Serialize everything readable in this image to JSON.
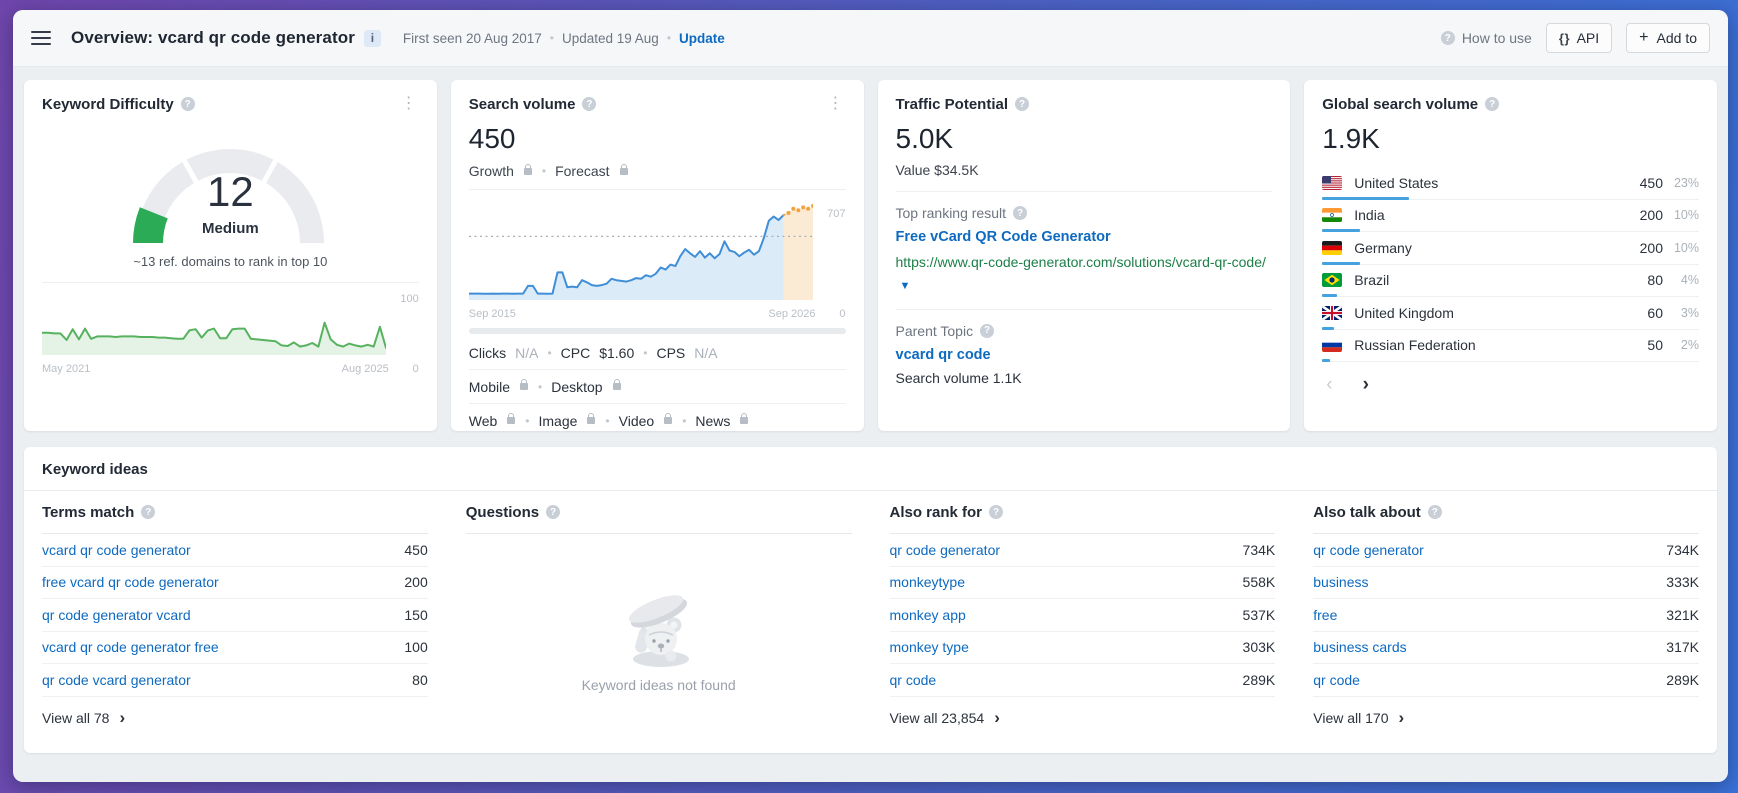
{
  "header": {
    "title": "Overview: vcard qr code generator",
    "info_badge": "i",
    "first_seen": "First seen 20 Aug 2017",
    "updated": "Updated 19 Aug",
    "update_link": "Update",
    "how_to_use": "How to use",
    "api_button": "API",
    "add_to_button": "Add to"
  },
  "keyword_difficulty": {
    "title": "Keyword Difficulty",
    "value": "12",
    "level": "Medium",
    "subtitle": "~13 ref. domains to rank in top 10",
    "history_y_max": "100",
    "history_y_min": "0",
    "history_x_start": "May 2021",
    "history_x_end": "Aug 2025"
  },
  "search_volume": {
    "title": "Search volume",
    "value": "450",
    "growth_label": "Growth",
    "forecast_label": "Forecast",
    "chart_y_max": "707",
    "chart_y_min": "0",
    "chart_x_start": "Sep 2015",
    "chart_x_end": "Sep 2026",
    "metrics_row1": [
      {
        "label": "Clicks",
        "value": "N/A",
        "muted": true
      },
      {
        "label": "CPC",
        "value": "$1.60",
        "muted": false
      },
      {
        "label": "CPS",
        "value": "N/A",
        "muted": true
      }
    ],
    "metrics_row2": [
      {
        "label": "Mobile",
        "locked": true
      },
      {
        "label": "Desktop",
        "locked": true
      }
    ],
    "metrics_row3": [
      {
        "label": "Web",
        "locked": true
      },
      {
        "label": "Image",
        "locked": true
      },
      {
        "label": "Video",
        "locked": true
      },
      {
        "label": "News",
        "locked": true
      }
    ]
  },
  "traffic_potential": {
    "title": "Traffic Potential",
    "value": "5.0K",
    "value_note": "Value $34.5K",
    "top_ranking_label": "Top ranking result",
    "top_result_title": "Free vCard QR Code Generator",
    "top_result_url": "https://www.qr-code-generator.com/solutions/vcard-qr-code/",
    "parent_topic_label": "Parent Topic",
    "parent_topic": "vcard qr code",
    "parent_topic_volume": "Search volume 1.1K"
  },
  "global_search_volume": {
    "title": "Global search volume",
    "value": "1.9K",
    "countries": [
      {
        "name": "United States",
        "flag": "us",
        "volume": "450",
        "percent": "23%",
        "pct": 23
      },
      {
        "name": "India",
        "flag": "in",
        "volume": "200",
        "percent": "10%",
        "pct": 10
      },
      {
        "name": "Germany",
        "flag": "de",
        "volume": "200",
        "percent": "10%",
        "pct": 10
      },
      {
        "name": "Brazil",
        "flag": "br",
        "volume": "80",
        "percent": "4%",
        "pct": 4
      },
      {
        "name": "United Kingdom",
        "flag": "gb",
        "volume": "60",
        "percent": "3%",
        "pct": 3
      },
      {
        "name": "Russian Federation",
        "flag": "ru",
        "volume": "50",
        "percent": "2%",
        "pct": 2
      }
    ]
  },
  "keyword_ideas": {
    "title": "Keyword ideas",
    "columns": [
      {
        "id": "terms-match",
        "header": "Terms match",
        "rows": [
          [
            "vcard qr code generator",
            "450"
          ],
          [
            "free vcard qr code generator",
            "200"
          ],
          [
            "qr code generator vcard",
            "150"
          ],
          [
            "vcard qr code generator free",
            "100"
          ],
          [
            "qr code vcard generator",
            "80"
          ]
        ],
        "view_all": "View all 78"
      },
      {
        "id": "questions",
        "header": "Questions",
        "empty": "Keyword ideas not found"
      },
      {
        "id": "also-rank-for",
        "header": "Also rank for",
        "rows": [
          [
            "qr code generator",
            "734K"
          ],
          [
            "monkeytype",
            "558K"
          ],
          [
            "monkey app",
            "537K"
          ],
          [
            "monkey type",
            "303K"
          ],
          [
            "qr code",
            "289K"
          ]
        ],
        "view_all": "View all 23,854"
      },
      {
        "id": "also-talk-about",
        "header": "Also talk about",
        "rows": [
          [
            "qr code generator",
            "734K"
          ],
          [
            "business",
            "333K"
          ],
          [
            "free",
            "321K"
          ],
          [
            "business cards",
            "317K"
          ],
          [
            "qr code",
            "289K"
          ]
        ],
        "view_all": "View all 170"
      }
    ]
  },
  "chart_data": [
    {
      "id": "kd-gauge",
      "type": "gauge",
      "title": "Keyword Difficulty",
      "value": 12,
      "max": 100,
      "label": "Medium",
      "color": "#2bab55",
      "track_color": "#e9ebee",
      "segments": 3
    },
    {
      "id": "kd-history",
      "type": "area",
      "title": "Keyword Difficulty history",
      "xlabel_start": "May 2021",
      "xlabel_end": "Aug 2025",
      "ylim": [
        0,
        100
      ],
      "line_color": "#57b25f",
      "fill_color": "rgba(87,178,95,0.16)",
      "values": [
        37,
        37,
        36,
        36,
        25,
        43,
        26,
        44,
        27,
        31,
        31,
        31,
        30,
        31,
        31,
        31,
        30,
        30,
        30,
        29,
        29,
        28,
        27,
        27,
        41,
        43,
        29,
        41,
        44,
        28,
        28,
        43,
        44,
        44,
        27,
        26,
        25,
        24,
        23,
        16,
        15,
        21,
        14,
        16,
        20,
        14,
        54,
        26,
        17,
        14,
        19,
        16,
        14,
        17,
        14,
        47,
        12
      ]
    },
    {
      "id": "search-volume",
      "type": "area",
      "title": "Search volume history & forecast",
      "xlabel_start": "Sep 2015",
      "xlabel_end": "Sep 2026",
      "ylim": [
        0,
        707
      ],
      "reference_line": 450,
      "line_color": "#3f8ed8",
      "fill_color": "rgba(63,142,216,0.18)",
      "forecast_color": "#f2a33c",
      "forecast_fill": "rgba(242,163,60,0.22)",
      "values": [
        45,
        45,
        45,
        44,
        44,
        45,
        44,
        45,
        45,
        44,
        45,
        45,
        100,
        100,
        45,
        45,
        44,
        45,
        195,
        195,
        90,
        95,
        90,
        140,
        125,
        105,
        100,
        105,
        115,
        150,
        140,
        135,
        130,
        140,
        155,
        150,
        175,
        165,
        185,
        230,
        215,
        250,
        240,
        310,
        360,
        330,
        305,
        345,
        300,
        330,
        295,
        325,
        415,
        350,
        340,
        310,
        335,
        355,
        320,
        345,
        440,
        560,
        590,
        565,
        600
      ],
      "forecast": [
        600,
        615,
        645,
        635,
        655,
        645,
        665
      ]
    }
  ]
}
